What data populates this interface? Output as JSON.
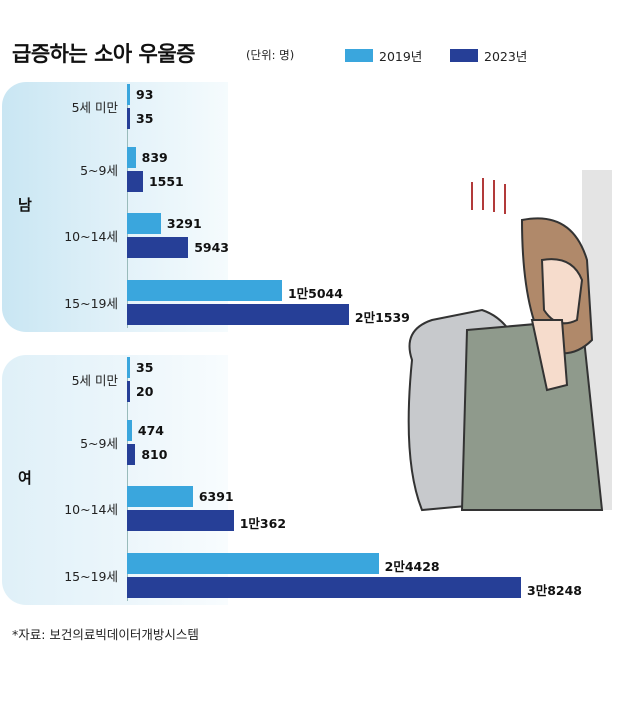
{
  "title": "급증하는 소아 우울증",
  "unit": "(단위: 명)",
  "source": "*자료: 보건의료빅데이터개방시스템",
  "colors": {
    "y2019": "#3aa6dd",
    "y2023": "#263f97"
  },
  "chart_data": {
    "type": "bar",
    "orientation": "horizontal",
    "title": "급증하는 소아 우울증",
    "unit": "(단위: 명)",
    "legend": [
      "2019년",
      "2023년"
    ],
    "groups": [
      {
        "gender": "남",
        "categories": [
          "5세 미만",
          "5~9세",
          "10~14세",
          "15~19세"
        ],
        "series": [
          {
            "name": "2019년",
            "values": [
              93,
              839,
              3291,
              15044
            ],
            "labels": [
              "93",
              "839",
              "3291",
              "1만5044"
            ]
          },
          {
            "name": "2023년",
            "values": [
              35,
              1551,
              5943,
              21539
            ],
            "labels": [
              "35",
              "1551",
              "5943",
              "2만1539"
            ]
          }
        ]
      },
      {
        "gender": "여",
        "categories": [
          "5세 미만",
          "5~9세",
          "10~14세",
          "15~19세"
        ],
        "series": [
          {
            "name": "2019년",
            "values": [
              35,
              474,
              6391,
              24428
            ],
            "labels": [
              "35",
              "474",
              "6391",
              "2만4428"
            ]
          },
          {
            "name": "2023년",
            "values": [
              20,
              810,
              10362,
              38248
            ],
            "labels": [
              "20",
              "810",
              "1만362",
              "3만8248"
            ]
          }
        ]
      }
    ],
    "xlim": [
      0,
      38248
    ]
  }
}
